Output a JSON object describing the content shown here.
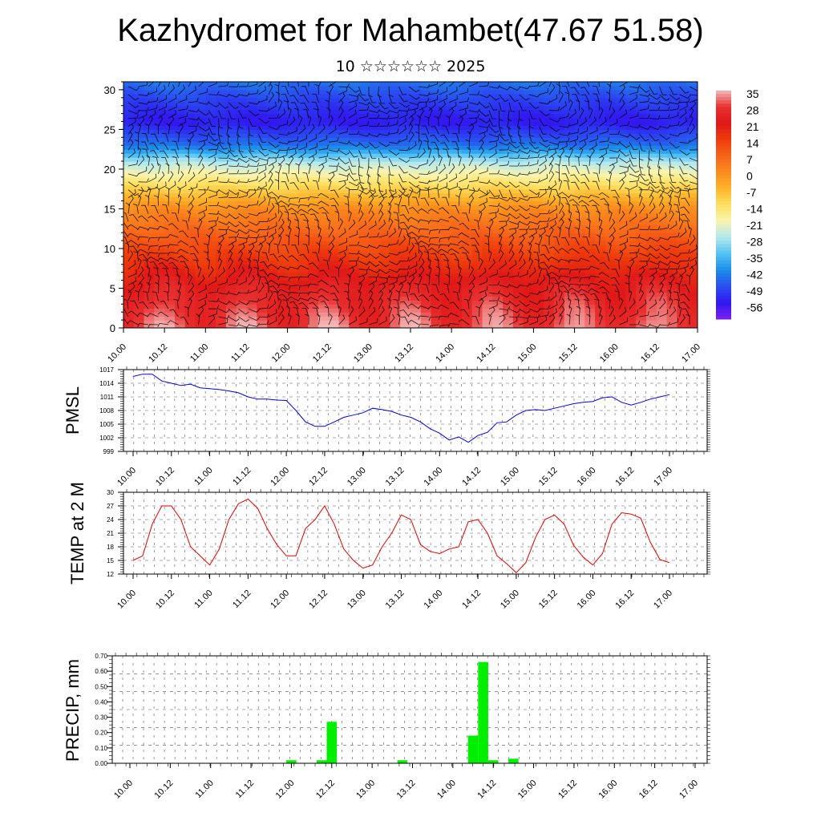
{
  "title": "Kazhydromet for Mahambet(47.67 51.58)",
  "subtitle": "10 ☆☆☆☆☆☆ 2025",
  "colors": {
    "pmsl_line": "#0000dd",
    "temp_line": "#dd0000",
    "precip_bar": "#00ee00",
    "grid": "#555555",
    "wind_barbs": "#000000"
  },
  "chart_data": [
    {
      "type": "heatmap",
      "title": "",
      "x_tick_labels": [
        "10.00",
        "10.12",
        "11.00",
        "11.12",
        "12.00",
        "12.12",
        "13.00",
        "13.12",
        "14.00",
        "14.12",
        "15.00",
        "15.12",
        "16.00",
        "16.12",
        "17.00"
      ],
      "y_ticks": [
        0,
        5,
        10,
        15,
        20,
        25,
        30
      ],
      "ylim": [
        0,
        31
      ],
      "xlim": [
        0,
        168
      ],
      "colorbar_labels": [
        "35",
        "28",
        "21",
        "14",
        "7",
        "0",
        "-7",
        "-14",
        "-21",
        "-28",
        "-35",
        "-42",
        "-49",
        "-56"
      ],
      "colorbar_colors": [
        "#f4b8b8",
        "#e83030",
        "#e01818",
        "#ee3c0c",
        "#f6641a",
        "#fa8c1e",
        "#fcb42c",
        "#fee060",
        "#f8f4b0",
        "#b4e8ee",
        "#52c2f4",
        "#1c8ee8",
        "#2a4ef0",
        "#3018f0",
        "#7a22f0"
      ],
      "profile_height": [
        0,
        5,
        10,
        15,
        18,
        21,
        23,
        26,
        29,
        31
      ],
      "profile_temperature": [
        30,
        24,
        12,
        0,
        -14,
        -28,
        -45,
        -56,
        -50,
        -45
      ],
      "overlay": "wind-barbs"
    },
    {
      "type": "line",
      "ylabel": "PMSL",
      "x_tick_labels": [
        "10.00",
        "10.12",
        "11.00",
        "11.12",
        "12.00",
        "12.12",
        "13.00",
        "13.12",
        "14.00",
        "14.12",
        "15.00",
        "15.12",
        "16.00",
        "16.12",
        "17.00"
      ],
      "ylim": [
        999,
        1017
      ],
      "y_tick_labels": [
        "1017",
        "1014",
        "1011",
        "1008",
        "1005",
        "1002",
        "999"
      ],
      "series": [
        {
          "x": [
            0,
            3,
            6,
            9,
            12,
            15,
            18,
            21,
            24,
            27,
            30,
            33,
            36,
            39,
            42,
            45,
            48,
            51,
            54,
            57,
            60,
            63,
            66,
            69,
            72,
            75,
            78,
            81,
            84,
            87,
            90,
            93,
            96,
            99,
            102,
            105,
            108,
            111,
            114,
            117,
            120,
            123,
            126,
            129,
            132,
            135,
            138,
            141,
            144,
            147,
            150,
            153,
            156,
            159,
            162,
            165,
            168
          ],
          "y": [
            1015.5,
            1016,
            1016,
            1014.5,
            1014,
            1013.5,
            1013.8,
            1013,
            1012.8,
            1012.6,
            1012.3,
            1011.9,
            1011,
            1010.5,
            1010.5,
            1010.3,
            1010.2,
            1008,
            1005.5,
            1004.5,
            1004.5,
            1005.5,
            1006.5,
            1007,
            1007.5,
            1008.5,
            1008.2,
            1007.8,
            1007,
            1006.5,
            1005.5,
            1004,
            1003,
            1001.5,
            1002.2,
            1001,
            1002.5,
            1003.2,
            1005.3,
            1005.5,
            1007,
            1008,
            1008.2,
            1008,
            1008.5,
            1009,
            1009.5,
            1009.8,
            1010,
            1010.8,
            1011,
            1009.8,
            1009.2,
            1009.8,
            1010.5,
            1011,
            1011.5
          ]
        }
      ]
    },
    {
      "type": "line",
      "ylabel": "TEMP at 2 M",
      "x_tick_labels": [
        "10.00",
        "10.12",
        "11.00",
        "11.12",
        "12.00",
        "12.12",
        "13.00",
        "13.12",
        "14.00",
        "14.12",
        "15.00",
        "15.12",
        "16.00",
        "16.12",
        "17.00"
      ],
      "ylim": [
        12,
        30
      ],
      "y_tick_labels": [
        "30",
        "27",
        "24",
        "21",
        "18",
        "15",
        "12"
      ],
      "series": [
        {
          "x": [
            0,
            3,
            6,
            9,
            12,
            15,
            18,
            21,
            24,
            27,
            30,
            33,
            36,
            39,
            42,
            45,
            48,
            51,
            54,
            57,
            60,
            63,
            66,
            69,
            72,
            75,
            78,
            81,
            84,
            87,
            90,
            93,
            96,
            99,
            102,
            105,
            108,
            111,
            114,
            117,
            120,
            123,
            126,
            129,
            132,
            135,
            138,
            141,
            144,
            147,
            150,
            153,
            156,
            159,
            162,
            165,
            168
          ],
          "y": [
            15,
            16,
            23,
            27,
            27,
            24,
            18,
            16,
            14,
            17.5,
            24,
            27.5,
            28.5,
            26.5,
            22,
            18.5,
            16,
            16,
            22,
            24,
            27,
            23,
            17.5,
            15,
            13.3,
            14,
            18,
            21,
            25,
            24,
            18.5,
            17,
            16.5,
            17.5,
            18,
            23.5,
            24,
            21,
            16,
            14.3,
            12.3,
            14.5,
            20,
            24,
            25,
            23,
            18.3,
            15.7,
            14,
            16.5,
            23,
            25.5,
            25.2,
            24.3,
            19,
            15.2,
            14.5
          ]
        }
      ]
    },
    {
      "type": "bar",
      "ylabel": "PRECIP, mm",
      "x_tick_labels": [
        "10.00",
        "10.12",
        "11.00",
        "11.12",
        "12.00",
        "12.12",
        "13.00",
        "13.12",
        "14.00",
        "14.12",
        "15.00",
        "15.12",
        "16.00",
        "16.12",
        "17.00"
      ],
      "ylim": [
        0,
        0.7
      ],
      "y_tick_labels": [
        "0.70",
        "0.60",
        "0.50",
        "0.40",
        "0.30",
        "0.20",
        "0.10",
        "0.00"
      ],
      "bars": [
        {
          "x": 48,
          "value": 0.02
        },
        {
          "x": 57,
          "value": 0.02
        },
        {
          "x": 60,
          "value": 0.27
        },
        {
          "x": 81,
          "value": 0.02
        },
        {
          "x": 102,
          "value": 0.18
        },
        {
          "x": 105,
          "value": 0.66
        },
        {
          "x": 108,
          "value": 0.02
        },
        {
          "x": 114,
          "value": 0.03
        }
      ]
    }
  ]
}
